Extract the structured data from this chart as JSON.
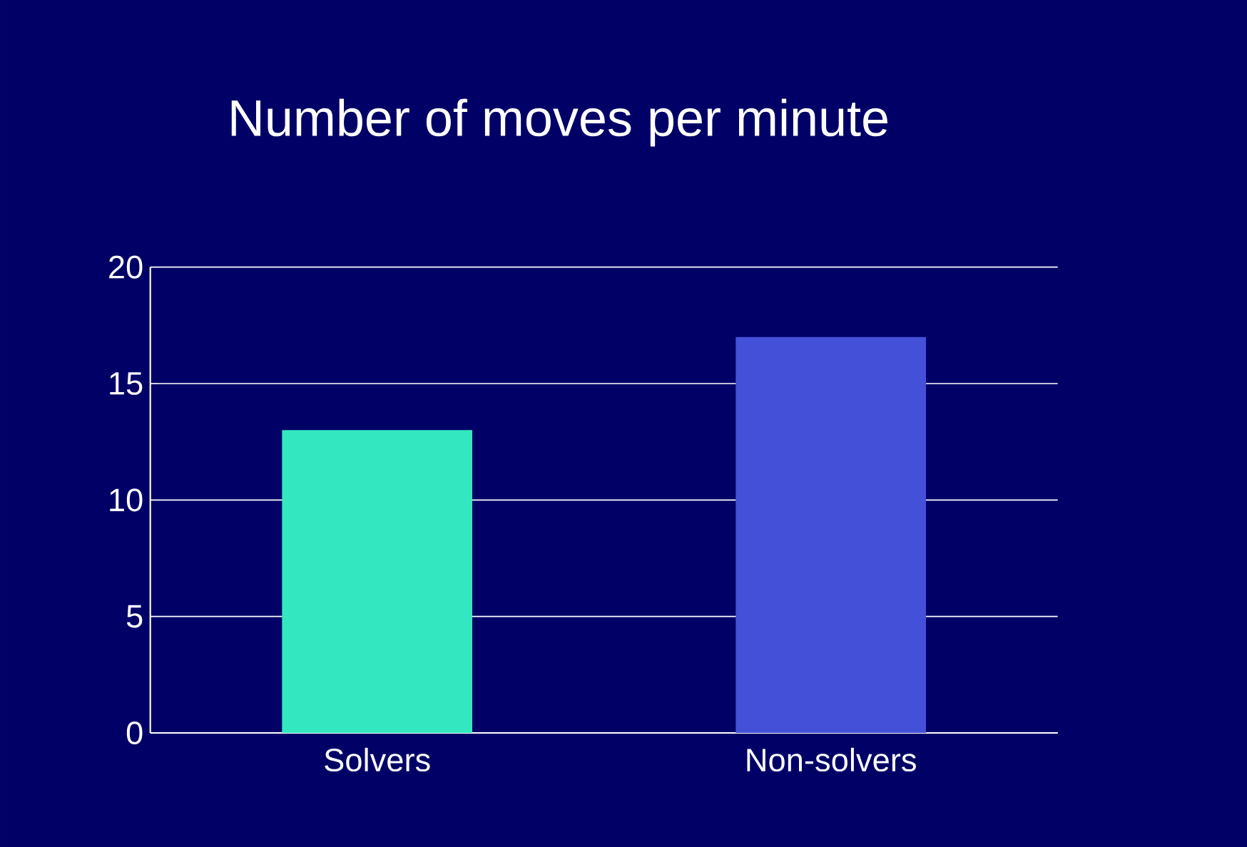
{
  "chart_data": {
    "type": "bar",
    "title": "Number of moves per minute",
    "categories": [
      "Solvers",
      "Non-solvers"
    ],
    "values": [
      13,
      17
    ],
    "colors": [
      "#33e8c0",
      "#4450d8"
    ],
    "ylim": [
      0,
      20
    ],
    "yticks": [
      0,
      5,
      10,
      15,
      20
    ],
    "grid": "y"
  }
}
